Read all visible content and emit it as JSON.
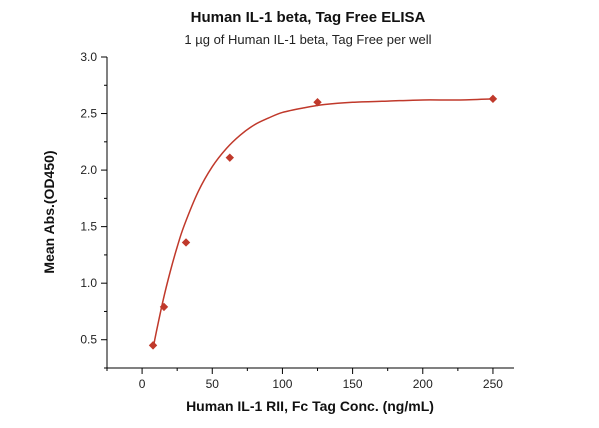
{
  "chart_data": {
    "type": "scatter",
    "title": "Human IL-1 beta, Tag Free ELISA",
    "subtitle": "1 µg of Human IL-1 beta, Tag Free per well",
    "xlabel": "Human IL-1 RII, Fc Tag Conc. (ng/mL)",
    "ylabel": "Mean Abs.(OD450)",
    "xlim": [
      -25,
      265
    ],
    "ylim": [
      0.25,
      3.0
    ],
    "xticks": [
      0,
      50,
      100,
      150,
      200,
      250
    ],
    "yticks": [
      0.5,
      1.0,
      1.5,
      2.0,
      2.5,
      3.0
    ],
    "xtick_labels": [
      "0",
      "50",
      "100",
      "150",
      "200",
      "250"
    ],
    "ytick_labels": [
      "0.5",
      "1.0",
      "1.5",
      "2.0",
      "2.5",
      "3.0"
    ],
    "grid": false,
    "series": [
      {
        "marker": "diamond",
        "color": "#c0392b",
        "x": [
          7.8,
          15.6,
          31.3,
          62.5,
          125,
          250
        ],
        "y": [
          0.45,
          0.79,
          1.36,
          2.11,
          2.6,
          2.63
        ]
      }
    ],
    "fit_curve": {
      "color": "#c0392b",
      "x": [
        7.8,
        10,
        15,
        20,
        25,
        30,
        40,
        50,
        60,
        70,
        80,
        90,
        100,
        115,
        130,
        150,
        175,
        200,
        225,
        250
      ],
      "y": [
        0.42,
        0.56,
        0.85,
        1.1,
        1.32,
        1.51,
        1.81,
        2.03,
        2.19,
        2.31,
        2.4,
        2.46,
        2.51,
        2.55,
        2.58,
        2.6,
        2.61,
        2.62,
        2.62,
        2.63
      ]
    }
  }
}
